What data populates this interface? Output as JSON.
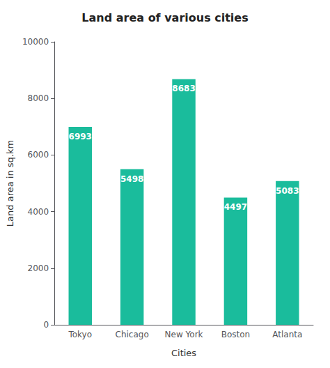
{
  "chart_data": {
    "type": "bar",
    "title": "Land area of various cities",
    "categories": [
      "Tokyo",
      "Chicago",
      "New York",
      "Boston",
      "Atlanta"
    ],
    "values": [
      6993,
      5498,
      8683,
      4497,
      5083
    ],
    "color": "#1ABC9C",
    "xlabel": "Cities",
    "ylabel": "Land area in sq.km",
    "ylim": [
      0,
      10000
    ],
    "yticks": [
      0,
      2000,
      4000,
      6000,
      8000,
      10000
    ],
    "grid": false,
    "data_labels": true
  }
}
